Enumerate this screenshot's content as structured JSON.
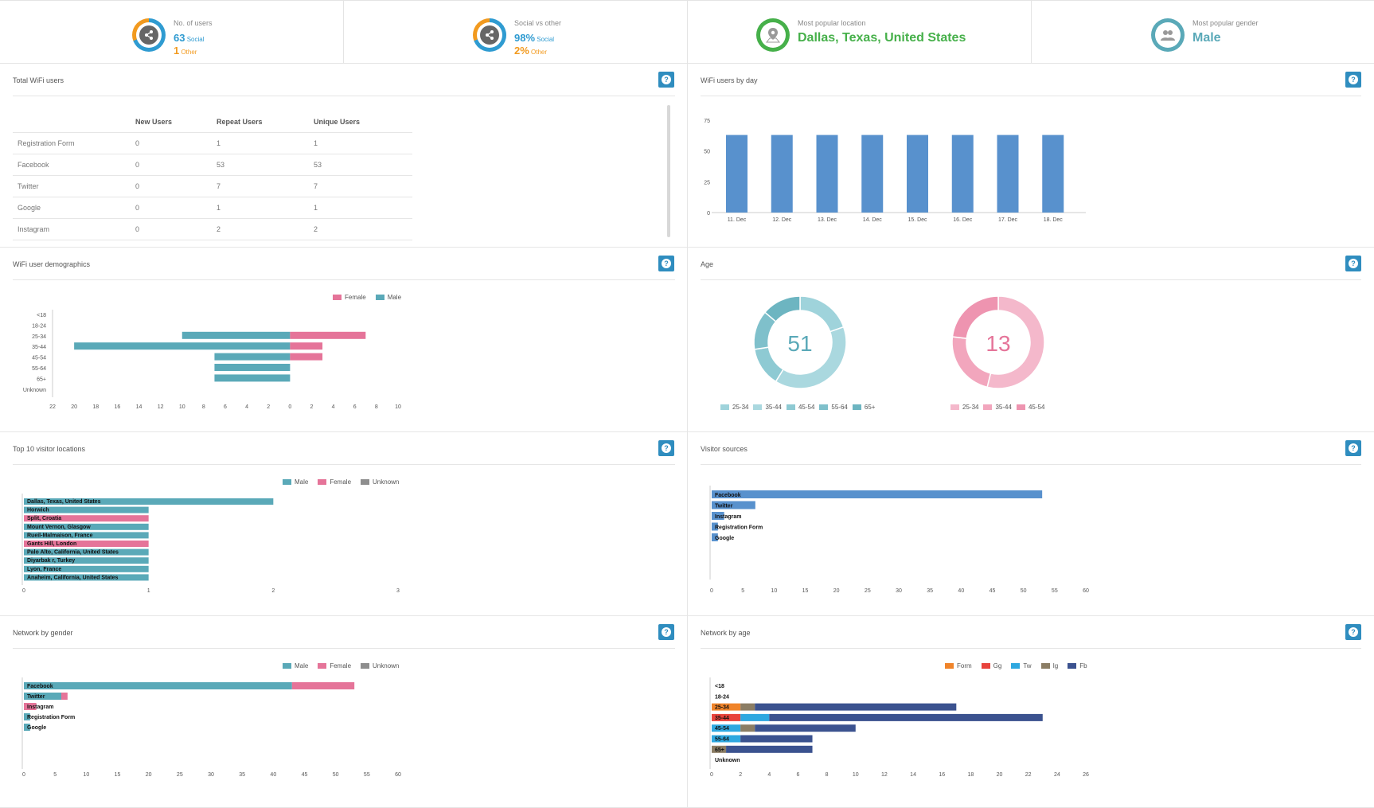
{
  "stats": [
    {
      "label": "No. of users",
      "line1_value": "63",
      "line1_suffix": "Social",
      "line2_value": "1",
      "line2_suffix": "Other",
      "icon": "share-icon"
    },
    {
      "label": "Social vs other",
      "line1_value": "98%",
      "line1_suffix": "Social",
      "line2_value": "2%",
      "line2_suffix": "Other",
      "icon": "share-icon"
    },
    {
      "label": "Most popular location",
      "value": "Dallas, Texas, United States",
      "icon": "map-pin-icon"
    },
    {
      "label": "Most popular gender",
      "value": "Male",
      "icon": "users-icon"
    }
  ],
  "colors": {
    "blue": "#2f9bd1",
    "orange": "#f29a1f",
    "green": "#46b04a",
    "teal": "#5aa9b8",
    "pink": "#e57499",
    "grey": "#8e8e8e",
    "bar_blue": "#5891cd",
    "navy": "#3b528f"
  },
  "panels": {
    "total_wifi": {
      "title": "Total WiFi users",
      "help": "?"
    },
    "by_day": {
      "title": "WiFi users by day",
      "help": "?"
    },
    "demographics": {
      "title": "WiFi user demographics",
      "help": "?"
    },
    "age": {
      "title": "Age",
      "help": "?"
    },
    "locations": {
      "title": "Top 10 visitor locations",
      "help": "?"
    },
    "sources": {
      "title": "Visitor sources",
      "help": "?"
    },
    "net_gender": {
      "title": "Network by gender",
      "help": "?"
    },
    "net_age": {
      "title": "Network by age",
      "help": "?"
    }
  },
  "wifi_table": {
    "headers": [
      "",
      "New Users",
      "Repeat Users",
      "Unique Users"
    ],
    "rows": [
      [
        "Registration Form",
        "0",
        "1",
        "1"
      ],
      [
        "Facebook",
        "0",
        "53",
        "53"
      ],
      [
        "Twitter",
        "0",
        "7",
        "7"
      ],
      [
        "Google",
        "0",
        "1",
        "1"
      ],
      [
        "Instagram",
        "0",
        "2",
        "2"
      ]
    ]
  },
  "chart_data": [
    {
      "id": "by_day",
      "type": "bar",
      "categories": [
        "11. Dec",
        "12. Dec",
        "13. Dec",
        "14. Dec",
        "15. Dec",
        "16. Dec",
        "17. Dec",
        "18. Dec"
      ],
      "values": [
        63,
        63,
        63,
        63,
        63,
        63,
        63,
        63
      ],
      "yticks": [
        "0",
        "25",
        "50",
        "75"
      ],
      "ylim": [
        0,
        75
      ],
      "color": "#5891cd"
    },
    {
      "id": "demographics",
      "type": "bar",
      "orientation": "horizontal-pyramid",
      "categories": [
        "<18",
        "18-24",
        "25-34",
        "35-44",
        "45-54",
        "55-64",
        "65+",
        "Unknown"
      ],
      "series": [
        {
          "name": "Female",
          "color": "#e57499",
          "values": [
            0,
            0,
            7,
            3,
            3,
            0,
            0,
            0
          ]
        },
        {
          "name": "Male",
          "color": "#5aa9b8",
          "values": [
            0,
            0,
            10,
            20,
            7,
            7,
            7,
            0
          ]
        }
      ],
      "xticks": [
        "22",
        "20",
        "18",
        "16",
        "14",
        "12",
        "10",
        "8",
        "6",
        "4",
        "2",
        "0",
        "2",
        "4",
        "6",
        "8",
        "10"
      ],
      "xlim": [
        -22,
        10
      ]
    },
    {
      "id": "age_male",
      "type": "pie",
      "donut": true,
      "center_label": "51",
      "color": "#5aa9b8",
      "categories": [
        "25-34",
        "35-44",
        "45-54",
        "55-64",
        "65+"
      ],
      "values": [
        10,
        20,
        7,
        7,
        7
      ],
      "colors": [
        "#9fd3db",
        "#aad8df",
        "#8ecad3",
        "#7fc0cb",
        "#6db5c1"
      ]
    },
    {
      "id": "age_female",
      "type": "pie",
      "donut": true,
      "center_label": "13",
      "color": "#e57499",
      "categories": [
        "25-34",
        "35-44",
        "45-54"
      ],
      "values": [
        7,
        3,
        3
      ],
      "colors": [
        "#f4b8cb",
        "#f2a6bd",
        "#ee94b0"
      ]
    },
    {
      "id": "locations",
      "type": "bar",
      "orientation": "horizontal",
      "categories": [
        "Dallas, Texas, United States",
        "Horwich",
        "Split, Croatia",
        "Mount Vernon, Glasgow",
        "Rueil-Malmaison, France",
        "Gants Hill, London",
        "Palo Alto, California, United States",
        "Diyarbak  r, Turkey",
        "Lyon, France",
        "Anaheim, California, United States"
      ],
      "values": [
        2,
        1,
        1,
        1,
        1,
        1,
        1,
        1,
        1,
        1
      ],
      "bar_colors": [
        "#5aa9b8",
        "#5aa9b8",
        "#e57499",
        "#5aa9b8",
        "#5aa9b8",
        "#e57499",
        "#5aa9b8",
        "#5aa9b8",
        "#5aa9b8",
        "#5aa9b8"
      ],
      "legend": [
        {
          "name": "Male",
          "color": "#5aa9b8"
        },
        {
          "name": "Female",
          "color": "#e57499"
        },
        {
          "name": "Unknown",
          "color": "#8e8e8e"
        }
      ],
      "xticks": [
        "0",
        "1",
        "2",
        "3"
      ],
      "xlim": [
        0,
        3
      ]
    },
    {
      "id": "sources",
      "type": "bar",
      "orientation": "horizontal",
      "categories": [
        "Facebook",
        "Twitter",
        "Instagram",
        "Registration Form",
        "Google"
      ],
      "values": [
        53,
        7,
        2,
        1,
        1
      ],
      "color": "#5891cd",
      "xticks": [
        "0",
        "5",
        "10",
        "15",
        "20",
        "25",
        "30",
        "35",
        "40",
        "45",
        "50",
        "55",
        "60"
      ],
      "xlim": [
        0,
        60
      ]
    },
    {
      "id": "net_gender",
      "type": "bar",
      "orientation": "horizontal-stacked",
      "categories": [
        "Facebook",
        "Twitter",
        "Instagram",
        "Registration Form",
        "Google"
      ],
      "series": [
        {
          "name": "Male",
          "color": "#5aa9b8",
          "values": [
            43,
            6,
            0,
            1,
            1
          ]
        },
        {
          "name": "Female",
          "color": "#e57499",
          "values": [
            10,
            1,
            2,
            0,
            0
          ]
        },
        {
          "name": "Unknown",
          "color": "#8e8e8e",
          "values": [
            0,
            0,
            0,
            0,
            0
          ]
        }
      ],
      "xticks": [
        "0",
        "5",
        "10",
        "15",
        "20",
        "25",
        "30",
        "35",
        "40",
        "45",
        "50",
        "55",
        "60"
      ],
      "xlim": [
        0,
        60
      ]
    },
    {
      "id": "net_age",
      "type": "bar",
      "orientation": "horizontal-stacked",
      "categories": [
        "<18",
        "18-24",
        "25-34",
        "35-44",
        "45-54",
        "55-64",
        "65+",
        "Unknown"
      ],
      "series": [
        {
          "name": "Form",
          "color": "#f0842a",
          "values": [
            0,
            0,
            2,
            0,
            0,
            0,
            0,
            0
          ]
        },
        {
          "name": "Gg",
          "color": "#e8433c",
          "values": [
            0,
            0,
            0,
            2,
            0,
            0,
            0,
            0
          ]
        },
        {
          "name": "Tw",
          "color": "#2fa8e0",
          "values": [
            0,
            0,
            0,
            2,
            2,
            2,
            0,
            0
          ]
        },
        {
          "name": "Ig",
          "color": "#8b7d64",
          "values": [
            0,
            0,
            1,
            0,
            1,
            0,
            1,
            0
          ]
        },
        {
          "name": "Fb",
          "color": "#3b528f",
          "values": [
            0,
            0,
            14,
            19,
            7,
            5,
            6,
            0
          ]
        }
      ],
      "xticks": [
        "0",
        "2",
        "4",
        "6",
        "8",
        "10",
        "12",
        "14",
        "16",
        "18",
        "20",
        "22",
        "24",
        "26"
      ],
      "xlim": [
        0,
        26
      ]
    }
  ]
}
